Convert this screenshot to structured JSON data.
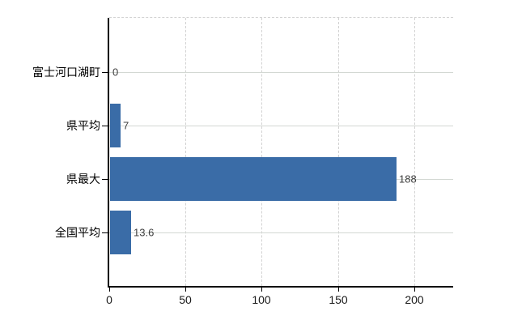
{
  "chart_data": {
    "type": "bar",
    "orientation": "horizontal",
    "title": "",
    "categories": [
      "富士河口湖町",
      "県平均",
      "県最大",
      "全国平均"
    ],
    "values": [
      0,
      7,
      188,
      13.6
    ],
    "value_labels": [
      "0",
      "7",
      "188",
      "13.6"
    ],
    "x_tick_labels": [
      "0",
      "50",
      "100",
      "150",
      "200"
    ],
    "x_tick_values": [
      0,
      50,
      100,
      150,
      200
    ],
    "xlim": [
      0,
      225.5
    ],
    "grid": true,
    "legend": false,
    "colors": {
      "bar": "#3a6ca7",
      "vertical_grid": "#d2d2d2",
      "horizontal_grid": "#d3d8d3",
      "top_border": "#d2d2d2",
      "axis": "#000000",
      "category_label": "#000000",
      "value_label": "#404040",
      "tick_label": "#1a1a1a",
      "background": "#ffffff"
    }
  }
}
